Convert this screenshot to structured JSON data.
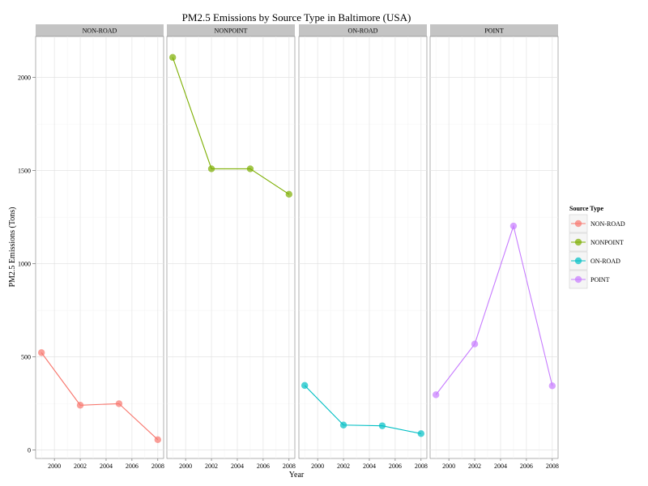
{
  "chart_data": {
    "type": "line",
    "title": "PM2.5 Emissions by Source Type in Baltimore (USA)",
    "xlabel": "Year",
    "ylabel": "PM2.5 Emissions (Tons)",
    "x": [
      1999,
      2002,
      2005,
      2008
    ],
    "xlim": [
      1998.55,
      2008.45
    ],
    "ylim": [
      -45,
      2220
    ],
    "xticks": [
      2000,
      2002,
      2004,
      2006,
      2008
    ],
    "yticks": [
      0,
      500,
      1000,
      1500,
      2000
    ],
    "grid": true,
    "facets": [
      "NON-ROAD",
      "NONPOINT",
      "ON-ROAD",
      "POINT"
    ],
    "legend": {
      "title": "Source Type",
      "position": "right"
    },
    "series": [
      {
        "name": "NON-ROAD",
        "facet": "NON-ROAD",
        "color": "#F8766D",
        "values": [
          522.9,
          240.8,
          248.9,
          55.8
        ]
      },
      {
        "name": "NONPOINT",
        "facet": "NONPOINT",
        "color": "#7CAE00",
        "values": [
          2107.6,
          1509.5,
          1509.5,
          1373.2
        ]
      },
      {
        "name": "ON-ROAD",
        "facet": "ON-ROAD",
        "color": "#00BFC4",
        "values": [
          346.8,
          134.3,
          130.4,
          88.3
        ]
      },
      {
        "name": "POINT",
        "facet": "POINT",
        "color": "#C77CFF",
        "values": [
          296.8,
          569.3,
          1202.5,
          344.98
        ]
      }
    ]
  }
}
